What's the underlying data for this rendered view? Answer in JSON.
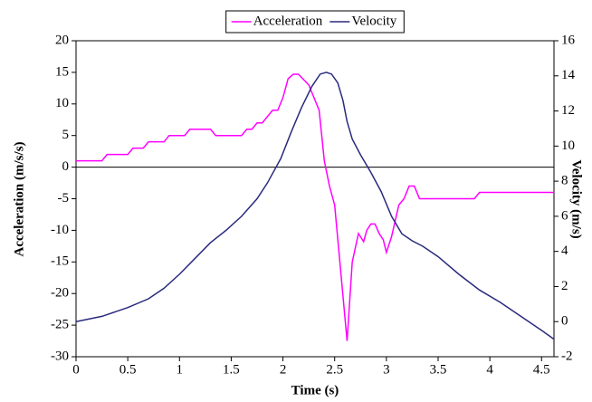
{
  "chart_data": {
    "type": "line",
    "x_label": "Time (s)",
    "y_label": "Acceleration (m/s/s)",
    "y2_label": "Velocity (m/s)",
    "xlim": [
      0,
      4.62
    ],
    "xticks": [
      0,
      0.5,
      1,
      1.5,
      2,
      2.5,
      3,
      3.5,
      4,
      4.5
    ],
    "ylim": [
      -30,
      20
    ],
    "yticks": [
      -30,
      -25,
      -20,
      -15,
      -10,
      -5,
      0,
      5,
      10,
      15,
      20
    ],
    "y2lim": [
      -2,
      16
    ],
    "y2ticks": [
      -2,
      0,
      2,
      4,
      6,
      8,
      10,
      12,
      14,
      16
    ],
    "zero_line": true,
    "legend": "top",
    "series": [
      {
        "name": "Acceleration",
        "color": "#ff00ff",
        "x": [
          0,
          0.25,
          0.3,
          0.45,
          0.5,
          0.55,
          0.65,
          0.7,
          0.8,
          0.85,
          0.9,
          1.0,
          1.05,
          1.1,
          1.3,
          1.35,
          1.6,
          1.65,
          1.7,
          1.75,
          1.8,
          1.85,
          1.9,
          1.95,
          2.0,
          2.05,
          2.1,
          2.15,
          2.25,
          2.35,
          2.4,
          2.45,
          2.5,
          2.62,
          2.67,
          2.73,
          2.78,
          2.81,
          2.85,
          2.89,
          2.93,
          2.97,
          3.0,
          3.05,
          3.12,
          3.17,
          3.22,
          3.27,
          3.32,
          3.5,
          3.85,
          3.9,
          4.62
        ],
        "values": [
          1,
          1,
          2,
          2,
          2,
          3,
          3,
          4,
          4,
          4,
          5,
          5,
          5,
          6,
          6,
          5,
          5,
          6,
          6,
          7,
          7,
          8,
          9,
          9,
          11,
          14,
          14.7,
          14.7,
          13,
          9,
          1,
          -3,
          -6,
          -27.5,
          -15,
          -10.5,
          -11.8,
          -10,
          -9,
          -9,
          -10.5,
          -11.5,
          -13.5,
          -11,
          -6,
          -5,
          -3,
          -3,
          -5,
          -5,
          -5,
          -4,
          -4
        ]
      },
      {
        "name": "Velocity",
        "color": "#2a2a7e",
        "axis": "y2",
        "x": [
          0,
          0.25,
          0.5,
          0.7,
          0.85,
          1.0,
          1.15,
          1.3,
          1.45,
          1.6,
          1.75,
          1.85,
          1.98,
          2.08,
          2.18,
          2.28,
          2.36,
          2.42,
          2.47,
          2.53,
          2.58,
          2.62,
          2.67,
          2.75,
          2.85,
          2.95,
          3.05,
          3.15,
          3.25,
          3.35,
          3.5,
          3.7,
          3.9,
          4.1,
          4.3,
          4.5,
          4.62
        ],
        "values": [
          0,
          0.3,
          0.8,
          1.3,
          1.9,
          2.7,
          3.6,
          4.5,
          5.2,
          6.0,
          7.0,
          7.9,
          9.3,
          10.8,
          12.2,
          13.4,
          14.1,
          14.2,
          14.1,
          13.6,
          12.6,
          11.4,
          10.4,
          9.5,
          8.5,
          7.4,
          6.0,
          5.0,
          4.6,
          4.3,
          3.7,
          2.7,
          1.8,
          1.1,
          0.3,
          -0.5,
          -1.0
        ]
      }
    ]
  }
}
